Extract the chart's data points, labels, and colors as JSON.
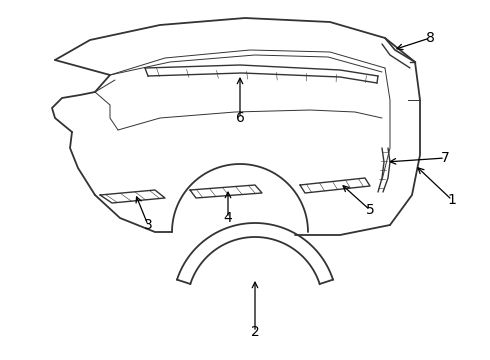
{
  "background_color": "#ffffff",
  "line_color": "#333333",
  "label_color": "#000000",
  "lw_main": 1.3,
  "lw_thin": 0.7,
  "font_size": 10
}
